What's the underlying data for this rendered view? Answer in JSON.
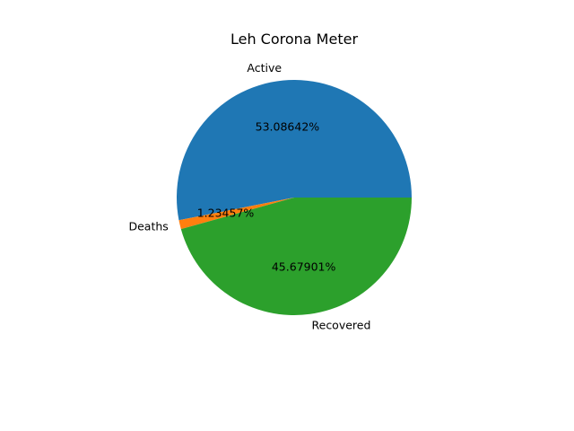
{
  "chart_data": {
    "type": "pie",
    "title": "Leh Corona Meter",
    "labels": [
      "Active",
      "Deaths",
      "Recovered"
    ],
    "values": [
      53.08642,
      1.23457,
      45.67901
    ],
    "value_labels": [
      "53.08642%",
      "1.23457%",
      "45.67901%"
    ],
    "colors": [
      "#1f77b4",
      "#ff7f0e",
      "#2ca02c"
    ],
    "start_angle_deg": 0,
    "direction": "counterclockwise",
    "legend": "none",
    "grid": false
  }
}
